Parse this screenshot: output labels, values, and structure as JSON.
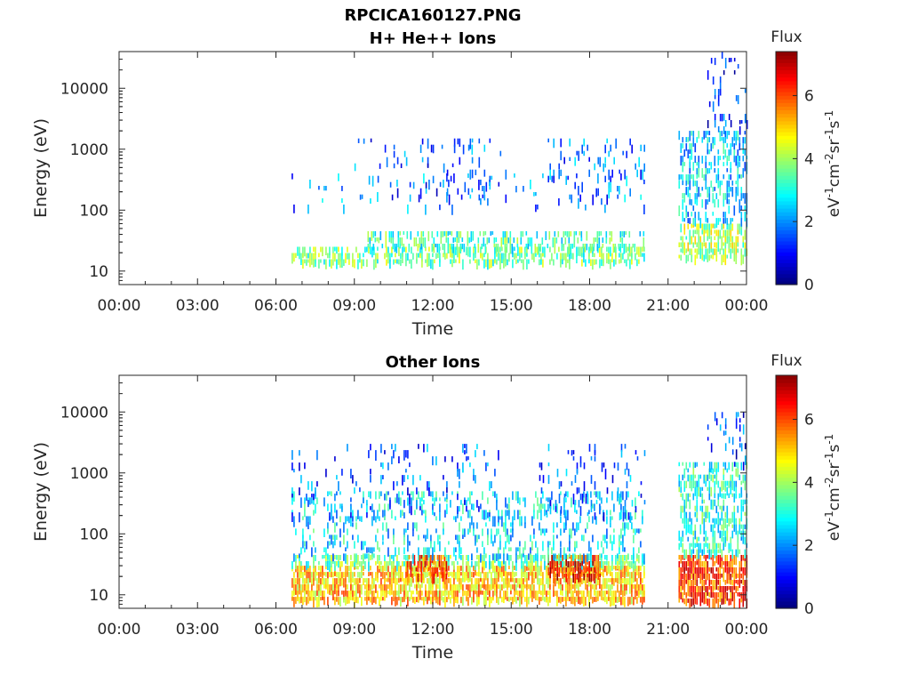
{
  "figure_title": "RPCICA160127.PNG",
  "colorbar": {
    "title": "Flux",
    "ticks": [
      0,
      2,
      4,
      6
    ],
    "max": 7.4,
    "unit_parts": [
      "eV",
      "-1",
      "cm",
      "-2",
      "sr",
      "-1",
      "s",
      "-1"
    ]
  },
  "chart_data": [
    {
      "type": "heatmap",
      "title": "H+ He++ Ions",
      "xlabel": "Time",
      "ylabel": "Energy (eV)",
      "x_ticks": [
        "00:00",
        "03:00",
        "06:00",
        "09:00",
        "12:00",
        "15:00",
        "18:00",
        "21:00",
        "00:00"
      ],
      "x_range_hours": [
        0,
        24
      ],
      "y_scale": "log",
      "y_ticks": [
        10,
        100,
        1000,
        10000
      ],
      "y_range": [
        6,
        40000
      ],
      "grid": false,
      "data_gaps": [
        [
          20.1,
          21.4
        ]
      ],
      "regions": [
        {
          "t": [
            6.6,
            20.1
          ],
          "e": [
            15,
            25
          ],
          "flux": 3.6,
          "density": 0.55
        },
        {
          "t": [
            9.5,
            20.1
          ],
          "e": [
            25,
            45
          ],
          "flux": 3.2,
          "density": 0.45
        },
        {
          "t": [
            6.6,
            20.1
          ],
          "e": [
            100,
            400
          ],
          "flux": 1.8,
          "density": 0.05
        },
        {
          "t": [
            9.0,
            13.5
          ],
          "e": [
            150,
            1500
          ],
          "flux": 1.5,
          "density": 0.07
        },
        {
          "t": [
            16.4,
            20.1
          ],
          "e": [
            150,
            1500
          ],
          "flux": 1.8,
          "density": 0.1
        },
        {
          "t": [
            12.8,
            14.8
          ],
          "e": [
            150,
            1500
          ],
          "flux": 1.5,
          "density": 0.07
        },
        {
          "t": [
            21.4,
            24.0
          ],
          "e": [
            15,
            60
          ],
          "flux": 4.0,
          "density": 0.6
        },
        {
          "t": [
            21.4,
            24.0
          ],
          "e": [
            60,
            2000
          ],
          "flux": 2.4,
          "density": 0.35
        },
        {
          "t": [
            22.5,
            24.0
          ],
          "e": [
            2000,
            40000
          ],
          "flux": 1.2,
          "density": 0.15
        }
      ]
    },
    {
      "type": "heatmap",
      "title": "Other Ions",
      "xlabel": "Time",
      "ylabel": "Energy (eV)",
      "x_ticks": [
        "00:00",
        "03:00",
        "06:00",
        "09:00",
        "12:00",
        "15:00",
        "18:00",
        "21:00",
        "00:00"
      ],
      "x_range_hours": [
        0,
        24
      ],
      "y_scale": "log",
      "y_ticks": [
        10,
        100,
        1000,
        10000
      ],
      "y_range": [
        6,
        40000
      ],
      "grid": false,
      "data_gaps": [
        [
          20.1,
          21.4
        ]
      ],
      "regions": [
        {
          "t": [
            6.6,
            20.1
          ],
          "e": [
            8,
            30
          ],
          "flux": 5.0,
          "density": 0.8
        },
        {
          "t": [
            6.6,
            20.1
          ],
          "e": [
            30,
            45
          ],
          "flux": 3.5,
          "density": 0.6
        },
        {
          "t": [
            16.4,
            18.4
          ],
          "e": [
            20,
            45
          ],
          "flux": 6.3,
          "density": 0.8
        },
        {
          "t": [
            11.0,
            12.5
          ],
          "e": [
            20,
            45
          ],
          "flux": 5.8,
          "density": 0.7
        },
        {
          "t": [
            6.6,
            20.1
          ],
          "e": [
            45,
            500
          ],
          "flux": 2.6,
          "density": 0.25
        },
        {
          "t": [
            6.6,
            14.5
          ],
          "e": [
            200,
            3000
          ],
          "flux": 1.6,
          "density": 0.1
        },
        {
          "t": [
            16.0,
            20.1
          ],
          "e": [
            200,
            3000
          ],
          "flux": 1.6,
          "density": 0.12
        },
        {
          "t": [
            21.4,
            24.0
          ],
          "e": [
            8,
            45
          ],
          "flux": 6.0,
          "density": 0.85
        },
        {
          "t": [
            21.4,
            24.0
          ],
          "e": [
            45,
            1500
          ],
          "flux": 3.0,
          "density": 0.5
        },
        {
          "t": [
            22.5,
            24.0
          ],
          "e": [
            1500,
            10000
          ],
          "flux": 1.3,
          "density": 0.15
        }
      ]
    }
  ]
}
